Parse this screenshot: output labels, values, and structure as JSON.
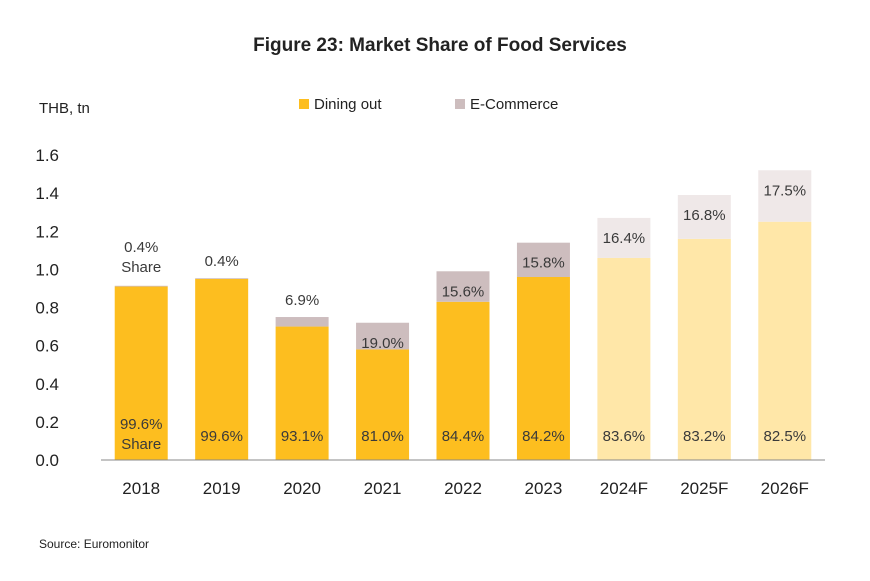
{
  "chart_data": {
    "type": "bar",
    "stacked": true,
    "title": "Figure 23: Market Share of Food Services",
    "ylabel": "THB, tn",
    "xlabel": "",
    "ylim": [
      0,
      1.6
    ],
    "yticks": [
      "0.0",
      "0.2",
      "0.4",
      "0.6",
      "0.8",
      "1.0",
      "1.2",
      "1.4",
      "1.6"
    ],
    "grid": false,
    "legend_position": "top-center",
    "categories": [
      "2018",
      "2019",
      "2020",
      "2021",
      "2022",
      "2023",
      "2024F",
      "2025F",
      "2026F"
    ],
    "forecast_flags": [
      false,
      false,
      false,
      false,
      false,
      false,
      true,
      true,
      true
    ],
    "series": [
      {
        "name": "Dining out",
        "values": [
          0.91,
          0.95,
          0.7,
          0.58,
          0.83,
          0.96,
          1.06,
          1.16,
          1.25
        ],
        "labels": [
          "99.6%",
          "99.6%",
          "93.1%",
          "81.0%",
          "84.4%",
          "84.2%",
          "83.6%",
          "83.2%",
          "82.5%"
        ]
      },
      {
        "name": "E-Commerce",
        "values": [
          0.004,
          0.004,
          0.05,
          0.14,
          0.16,
          0.18,
          0.21,
          0.23,
          0.27
        ],
        "labels": [
          "0.4%",
          "0.4%",
          "6.9%",
          "19.0%",
          "15.6%",
          "15.8%",
          "16.4%",
          "16.8%",
          "17.5%"
        ]
      }
    ],
    "annotations": [
      "Share",
      "Share"
    ],
    "colors": {
      "dining_out": "#FDBE1F",
      "dining_out_forecast": "#FFE7A8",
      "ecommerce": "#CDBDBE",
      "ecommerce_forecast": "#EFE8E8",
      "axis": "#888888",
      "text": "#222222",
      "label_text": "#3A3A3A"
    }
  },
  "source": "Source: Euromonitor"
}
